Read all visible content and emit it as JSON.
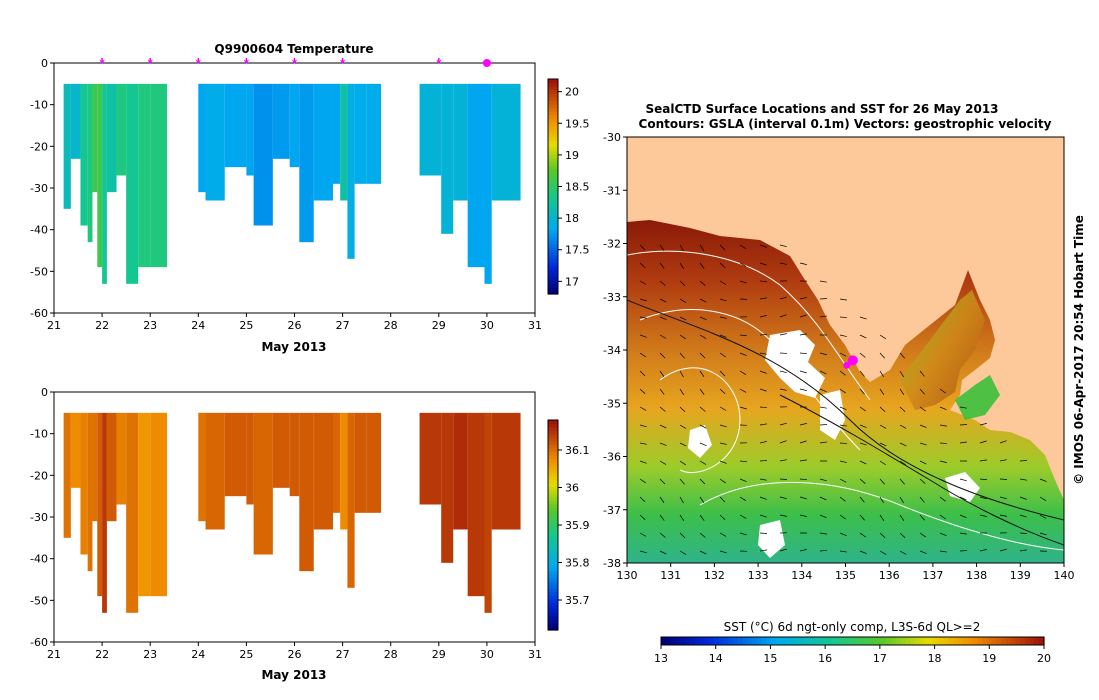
{
  "chart_data": [
    {
      "type": "heatmap",
      "title": "Q9900604  Temperature",
      "xlabel": "May 2013",
      "xlim": [
        21,
        31
      ],
      "ylim": [
        -60,
        0
      ],
      "xticks": [
        "21",
        "22",
        "23",
        "24",
        "25",
        "26",
        "27",
        "28",
        "29",
        "30",
        "31"
      ],
      "yticks": [
        "0",
        "-10",
        "-20",
        "-30",
        "-40",
        "-50",
        "-60"
      ],
      "cbar_ticks": [
        "17",
        "17.5",
        "18",
        "18.5",
        "19",
        "19.5",
        "20"
      ],
      "cbar_range": [
        16.8,
        20.2
      ],
      "markers_x": [
        22,
        23,
        24,
        25,
        26,
        27,
        29,
        30
      ],
      "highlight_marker_x": 30,
      "profiles": [
        {
          "x0": 21.2,
          "x1": 21.35,
          "depth": 35,
          "value": 18.1
        },
        {
          "x0": 21.35,
          "x1": 21.55,
          "depth": 23,
          "value": 18.0
        },
        {
          "x0": 21.55,
          "x1": 21.7,
          "depth": 39,
          "value": 18.3
        },
        {
          "x0": 21.7,
          "x1": 21.8,
          "depth": 43,
          "value": 18.4
        },
        {
          "x0": 21.8,
          "x1": 21.9,
          "depth": 31,
          "value": 18.6
        },
        {
          "x0": 21.9,
          "x1": 22.0,
          "depth": 49,
          "value": 18.6
        },
        {
          "x0": 22.0,
          "x1": 22.1,
          "depth": 53,
          "value": 18.3
        },
        {
          "x0": 22.1,
          "x1": 22.3,
          "depth": 31,
          "value": 18.2
        },
        {
          "x0": 22.3,
          "x1": 22.5,
          "depth": 27,
          "value": 18.4
        },
        {
          "x0": 22.5,
          "x1": 22.75,
          "depth": 53,
          "value": 18.3
        },
        {
          "x0": 22.75,
          "x1": 23.0,
          "depth": 49,
          "value": 18.4
        },
        {
          "x0": 23.0,
          "x1": 23.35,
          "depth": 49,
          "value": 18.4
        },
        {
          "x0": 24.0,
          "x1": 24.15,
          "depth": 31,
          "value": 17.8
        },
        {
          "x0": 24.15,
          "x1": 24.55,
          "depth": 33,
          "value": 17.85
        },
        {
          "x0": 24.55,
          "x1": 25.0,
          "depth": 25,
          "value": 17.8
        },
        {
          "x0": 25.0,
          "x1": 25.15,
          "depth": 27,
          "value": 17.8
        },
        {
          "x0": 25.15,
          "x1": 25.55,
          "depth": 39,
          "value": 17.7
        },
        {
          "x0": 25.55,
          "x1": 25.9,
          "depth": 23,
          "value": 17.75
        },
        {
          "x0": 25.9,
          "x1": 26.1,
          "depth": 25,
          "value": 17.8
        },
        {
          "x0": 26.1,
          "x1": 26.4,
          "depth": 43,
          "value": 17.75
        },
        {
          "x0": 26.4,
          "x1": 26.8,
          "depth": 33,
          "value": 17.8
        },
        {
          "x0": 26.8,
          "x1": 26.95,
          "depth": 29,
          "value": 17.8
        },
        {
          "x0": 26.95,
          "x1": 27.1,
          "depth": 33,
          "value": 18.2
        },
        {
          "x0": 27.1,
          "x1": 27.25,
          "depth": 47,
          "value": 17.9
        },
        {
          "x0": 27.25,
          "x1": 27.5,
          "depth": 29,
          "value": 17.85
        },
        {
          "x0": 27.5,
          "x1": 27.8,
          "depth": 29,
          "value": 17.85
        },
        {
          "x0": 28.6,
          "x1": 29.05,
          "depth": 27,
          "value": 17.95
        },
        {
          "x0": 29.05,
          "x1": 29.3,
          "depth": 41,
          "value": 17.95
        },
        {
          "x0": 29.3,
          "x1": 29.6,
          "depth": 33,
          "value": 17.95
        },
        {
          "x0": 29.6,
          "x1": 29.95,
          "depth": 49,
          "value": 17.8
        },
        {
          "x0": 29.95,
          "x1": 30.1,
          "depth": 53,
          "value": 17.8
        },
        {
          "x0": 30.1,
          "x1": 30.7,
          "depth": 33,
          "value": 17.95
        }
      ]
    },
    {
      "type": "heatmap",
      "title": "",
      "xlabel": "May 2013",
      "xlim": [
        21,
        31
      ],
      "ylim": [
        -60,
        0
      ],
      "xticks": [
        "21",
        "22",
        "23",
        "24",
        "25",
        "26",
        "27",
        "28",
        "29",
        "30",
        "31"
      ],
      "yticks": [
        "0",
        "-10",
        "-20",
        "-30",
        "-40",
        "-50",
        "-60"
      ],
      "cbar_ticks": [
        "35.7",
        "35.8",
        "35.9",
        "36",
        "36.1"
      ],
      "cbar_range": [
        35.62,
        36.18
      ],
      "profiles": [
        {
          "x0": 21.2,
          "x1": 21.35,
          "depth": 35,
          "value": 36.1
        },
        {
          "x0": 21.35,
          "x1": 21.55,
          "depth": 23,
          "value": 36.08
        },
        {
          "x0": 21.55,
          "x1": 21.7,
          "depth": 39,
          "value": 36.09
        },
        {
          "x0": 21.7,
          "x1": 21.8,
          "depth": 43,
          "value": 36.1
        },
        {
          "x0": 21.8,
          "x1": 21.9,
          "depth": 31,
          "value": 36.1
        },
        {
          "x0": 21.9,
          "x1": 22.0,
          "depth": 49,
          "value": 36.12
        },
        {
          "x0": 22.0,
          "x1": 22.1,
          "depth": 53,
          "value": 36.15
        },
        {
          "x0": 22.1,
          "x1": 22.3,
          "depth": 31,
          "value": 36.12
        },
        {
          "x0": 22.3,
          "x1": 22.5,
          "depth": 27,
          "value": 36.09
        },
        {
          "x0": 22.5,
          "x1": 22.75,
          "depth": 53,
          "value": 36.1
        },
        {
          "x0": 22.75,
          "x1": 23.0,
          "depth": 49,
          "value": 36.07
        },
        {
          "x0": 23.0,
          "x1": 23.35,
          "depth": 49,
          "value": 36.08
        },
        {
          "x0": 24.0,
          "x1": 24.15,
          "depth": 31,
          "value": 36.1
        },
        {
          "x0": 24.15,
          "x1": 24.55,
          "depth": 33,
          "value": 36.11
        },
        {
          "x0": 24.55,
          "x1": 25.0,
          "depth": 25,
          "value": 36.12
        },
        {
          "x0": 25.0,
          "x1": 25.15,
          "depth": 27,
          "value": 36.12
        },
        {
          "x0": 25.15,
          "x1": 25.55,
          "depth": 39,
          "value": 36.11
        },
        {
          "x0": 25.55,
          "x1": 25.9,
          "depth": 23,
          "value": 36.12
        },
        {
          "x0": 25.9,
          "x1": 26.1,
          "depth": 25,
          "value": 36.12
        },
        {
          "x0": 26.1,
          "x1": 26.4,
          "depth": 43,
          "value": 36.12
        },
        {
          "x0": 26.4,
          "x1": 26.8,
          "depth": 33,
          "value": 36.12
        },
        {
          "x0": 26.8,
          "x1": 26.95,
          "depth": 29,
          "value": 36.11
        },
        {
          "x0": 26.95,
          "x1": 27.1,
          "depth": 33,
          "value": 36.08
        },
        {
          "x0": 27.1,
          "x1": 27.25,
          "depth": 47,
          "value": 36.11
        },
        {
          "x0": 27.25,
          "x1": 27.5,
          "depth": 29,
          "value": 36.12
        },
        {
          "x0": 27.5,
          "x1": 27.8,
          "depth": 29,
          "value": 36.12
        },
        {
          "x0": 28.6,
          "x1": 29.05,
          "depth": 27,
          "value": 36.15
        },
        {
          "x0": 29.05,
          "x1": 29.3,
          "depth": 41,
          "value": 36.15
        },
        {
          "x0": 29.3,
          "x1": 29.6,
          "depth": 33,
          "value": 36.16
        },
        {
          "x0": 29.6,
          "x1": 29.95,
          "depth": 49,
          "value": 36.15
        },
        {
          "x0": 29.95,
          "x1": 30.1,
          "depth": 53,
          "value": 36.14
        },
        {
          "x0": 30.1,
          "x1": 30.7,
          "depth": 33,
          "value": 36.15
        }
      ]
    },
    {
      "type": "heatmap",
      "title": "SealCTD Surface Locations and SST for 26 May 2013",
      "subtitle": "Contours: GSLA (interval 0.1m)  Vectors: geostrophic velocity",
      "xlim": [
        130,
        140
      ],
      "ylim": [
        -38,
        -30
      ],
      "xticks": [
        "130",
        "131",
        "132",
        "133",
        "134",
        "135",
        "136",
        "137",
        "138",
        "139",
        "140"
      ],
      "yticks": [
        "-30",
        "-31",
        "-32",
        "-33",
        "-34",
        "-35",
        "-36",
        "-37",
        "-38"
      ],
      "cbar_label": "SST (°C) 6d ngt-only comp, L3S-6d QL>=2",
      "cbar_ticks": [
        "13",
        "14",
        "15",
        "16",
        "17",
        "18",
        "19",
        "20"
      ],
      "cbar_range": [
        13,
        20
      ],
      "side_label": "© IMOS 06-Apr-2017 20:54 Hobart Time",
      "seal_location": [
        135.1,
        -34.25
      ]
    }
  ],
  "colors": {
    "land": "#fdc89a",
    "marker": "#ff00ff"
  }
}
